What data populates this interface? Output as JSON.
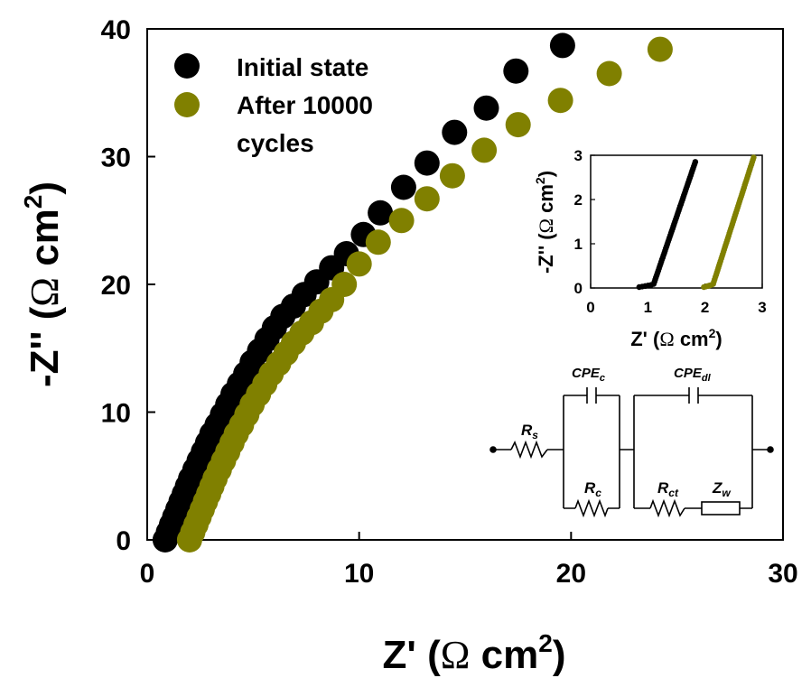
{
  "chart_data": {
    "type": "scatter",
    "title": "",
    "xlabel": {
      "prefix": "Z' (",
      "symbol": "Ω",
      "unit": " cm",
      "sup": "2",
      "suffix": ")"
    },
    "ylabel": {
      "prefix": "-Z'' (",
      "symbol": "Ω",
      "unit": " cm",
      "sup": "2",
      "suffix": ")"
    },
    "xlim": [
      0,
      30
    ],
    "ylim": [
      0,
      40
    ],
    "xticks": [
      "0",
      "10",
      "20",
      "30"
    ],
    "yticks": [
      "0",
      "10",
      "20",
      "30",
      "40"
    ],
    "grid": false,
    "legend_position": "top-left",
    "series": [
      {
        "name": "Initial state",
        "color": "#000000",
        "points": [
          [
            0.85,
            0.0
          ],
          [
            1.0,
            0.6
          ],
          [
            1.15,
            1.2
          ],
          [
            1.3,
            1.8
          ],
          [
            1.45,
            2.4
          ],
          [
            1.6,
            3.0
          ],
          [
            1.75,
            3.6
          ],
          [
            1.9,
            4.2
          ],
          [
            2.05,
            4.8
          ],
          [
            2.25,
            5.5
          ],
          [
            2.45,
            6.2
          ],
          [
            2.65,
            6.9
          ],
          [
            2.85,
            7.6
          ],
          [
            3.05,
            8.3
          ],
          [
            3.3,
            9.0
          ],
          [
            3.55,
            9.8
          ],
          [
            3.8,
            10.6
          ],
          [
            4.05,
            11.4
          ],
          [
            4.35,
            12.2
          ],
          [
            4.65,
            13.0
          ],
          [
            4.95,
            13.9
          ],
          [
            5.3,
            14.8
          ],
          [
            5.65,
            15.7
          ],
          [
            6.0,
            16.6
          ],
          [
            6.4,
            17.5
          ],
          [
            6.9,
            18.3
          ],
          [
            7.4,
            19.2
          ],
          [
            8.0,
            20.2
          ],
          [
            8.7,
            21.3
          ],
          [
            9.4,
            22.4
          ],
          [
            10.2,
            23.9
          ],
          [
            11.0,
            25.6
          ],
          [
            12.1,
            27.6
          ],
          [
            13.2,
            29.5
          ],
          [
            14.5,
            31.9
          ],
          [
            16.0,
            33.8
          ],
          [
            17.4,
            36.7
          ],
          [
            19.6,
            38.7
          ]
        ]
      },
      {
        "name": "After 10000 cycles",
        "color": "#808000",
        "points": [
          [
            2.0,
            0.0
          ],
          [
            2.15,
            0.6
          ],
          [
            2.3,
            1.2
          ],
          [
            2.45,
            1.8
          ],
          [
            2.6,
            2.4
          ],
          [
            2.75,
            3.0
          ],
          [
            2.9,
            3.6
          ],
          [
            3.05,
            4.2
          ],
          [
            3.2,
            4.8
          ],
          [
            3.4,
            5.5
          ],
          [
            3.6,
            6.2
          ],
          [
            3.8,
            6.9
          ],
          [
            4.0,
            7.6
          ],
          [
            4.2,
            8.3
          ],
          [
            4.45,
            9.0
          ],
          [
            4.7,
            9.8
          ],
          [
            4.95,
            10.6
          ],
          [
            5.25,
            11.4
          ],
          [
            5.55,
            12.2
          ],
          [
            5.85,
            13.0
          ],
          [
            6.2,
            13.8
          ],
          [
            6.55,
            14.6
          ],
          [
            6.9,
            15.4
          ],
          [
            7.3,
            16.2
          ],
          [
            7.75,
            17.0
          ],
          [
            8.2,
            17.9
          ],
          [
            8.7,
            18.8
          ],
          [
            9.3,
            20.0
          ],
          [
            10.0,
            21.6
          ],
          [
            10.9,
            23.3
          ],
          [
            12.0,
            25.0
          ],
          [
            13.2,
            26.7
          ],
          [
            14.4,
            28.5
          ],
          [
            15.9,
            30.5
          ],
          [
            17.5,
            32.5
          ],
          [
            19.5,
            34.4
          ],
          [
            21.8,
            36.5
          ],
          [
            24.2,
            38.4
          ]
        ]
      }
    ],
    "inset": {
      "type": "scatter",
      "xlabel": {
        "prefix": "Z' (",
        "symbol": "Ω",
        "unit": " cm",
        "sup": "2",
        "suffix": ")"
      },
      "ylabel": {
        "prefix": "-Z'' (",
        "symbol": "Ω",
        "unit": " cm",
        "sup": "2",
        "suffix": ")"
      },
      "xlim": [
        0,
        3
      ],
      "ylim": [
        0,
        3
      ],
      "xticks": [
        "0",
        "1",
        "2",
        "3"
      ],
      "yticks": [
        "0",
        "1",
        "2",
        "3"
      ],
      "series": [
        {
          "name": "Initial state",
          "color": "#000000",
          "x_start": 0.85,
          "x_knee": 1.1,
          "x_end": 1.83,
          "y_end": 2.85
        },
        {
          "name": "After 10000 cycles",
          "color": "#808000",
          "x_start": 1.98,
          "x_knee": 2.14,
          "x_end": 2.85,
          "y_end": 2.95
        }
      ]
    },
    "circuit": {
      "labels": {
        "rs": {
          "base": "R",
          "sub": "s"
        },
        "cpe_c": {
          "base": "CPE",
          "sub": "c"
        },
        "rc": {
          "base": "R",
          "sub": "c"
        },
        "cpe_dl": {
          "base": "CPE",
          "sub": "dl"
        },
        "rct": {
          "base": "R",
          "sub": "ct"
        },
        "zw": {
          "base": "Z",
          "sub": "w"
        }
      }
    }
  }
}
